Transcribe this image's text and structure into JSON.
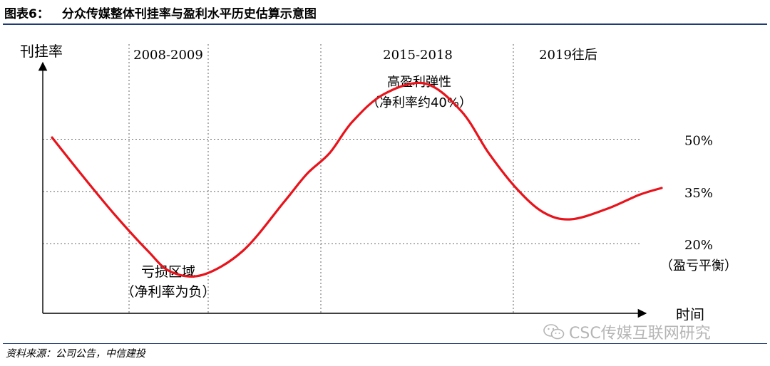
{
  "header": {
    "figure_label": "图表6：",
    "title": "分众传媒整体刊挂率与盈利水平历史估算示意图"
  },
  "source": "资料来源：公司公告，中信建投",
  "watermark": {
    "text": "CSC传媒互联网研究",
    "icon": "wechat-icon"
  },
  "colors": {
    "curve": "#e8131b",
    "rule": "#1f3b73",
    "axis": "#000000",
    "grid": "#666666"
  },
  "chart_data": {
    "type": "line",
    "title": "分众传媒整体刊挂率与盈利水平历史估算示意图",
    "xlabel": "时间",
    "ylabel": "刊挂率",
    "x_period_labels": [
      "2008-2009",
      "2015-2018",
      "2019往后"
    ],
    "y_reference_lines": [
      {
        "value": 50,
        "label": "50%"
      },
      {
        "value": 35,
        "label": "35%"
      },
      {
        "value": 20,
        "label": "20%",
        "sublabel": "（盈亏平衡）"
      }
    ],
    "annotations": [
      {
        "text": "亏损区域",
        "sub": "（净利率为负）"
      },
      {
        "text": "高盈利弹性",
        "sub": "（净利率约40%）"
      }
    ],
    "ylim": [
      0,
      72
    ],
    "x": [
      0,
      0.7,
      1.4,
      2.1,
      2.6,
      3.3,
      4.2,
      5.1,
      5.6,
      6.1,
      6.6,
      7.3,
      8.2,
      9.0,
      9.6,
      10.2,
      10.8,
      11.4,
      12.2,
      12.9,
      13.4
    ],
    "values": [
      50.5,
      39,
      28,
      18,
      12,
      11,
      18,
      32,
      40,
      46,
      55,
      63,
      66,
      58,
      46,
      36,
      29,
      27,
      30,
      34,
      36
    ]
  }
}
